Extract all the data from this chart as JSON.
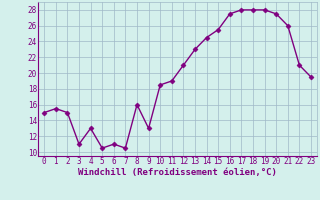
{
  "x": [
    0,
    1,
    2,
    3,
    4,
    5,
    6,
    7,
    8,
    9,
    10,
    11,
    12,
    13,
    14,
    15,
    16,
    17,
    18,
    19,
    20,
    21,
    22,
    23
  ],
  "y": [
    15,
    15.5,
    15,
    11,
    13,
    10.5,
    11,
    10.5,
    16,
    13,
    18.5,
    19,
    21,
    23,
    24.5,
    25.5,
    27.5,
    28,
    28,
    28,
    27.5,
    26,
    21,
    19.5
  ],
  "line_color": "#800080",
  "marker": "D",
  "markersize": 2.5,
  "linewidth": 1.0,
  "bg_color": "#d4f0ec",
  "grid_color": "#a0b8c8",
  "xlabel": "Windchill (Refroidissement éolien,°C)",
  "xlabel_color": "#800080",
  "ylim": [
    9.5,
    29
  ],
  "yticks": [
    10,
    12,
    14,
    16,
    18,
    20,
    22,
    24,
    26,
    28
  ],
  "xticks": [
    0,
    1,
    2,
    3,
    4,
    5,
    6,
    7,
    8,
    9,
    10,
    11,
    12,
    13,
    14,
    15,
    16,
    17,
    18,
    19,
    20,
    21,
    22,
    23
  ],
  "tick_fontsize": 5.5,
  "xlabel_fontsize": 6.5
}
